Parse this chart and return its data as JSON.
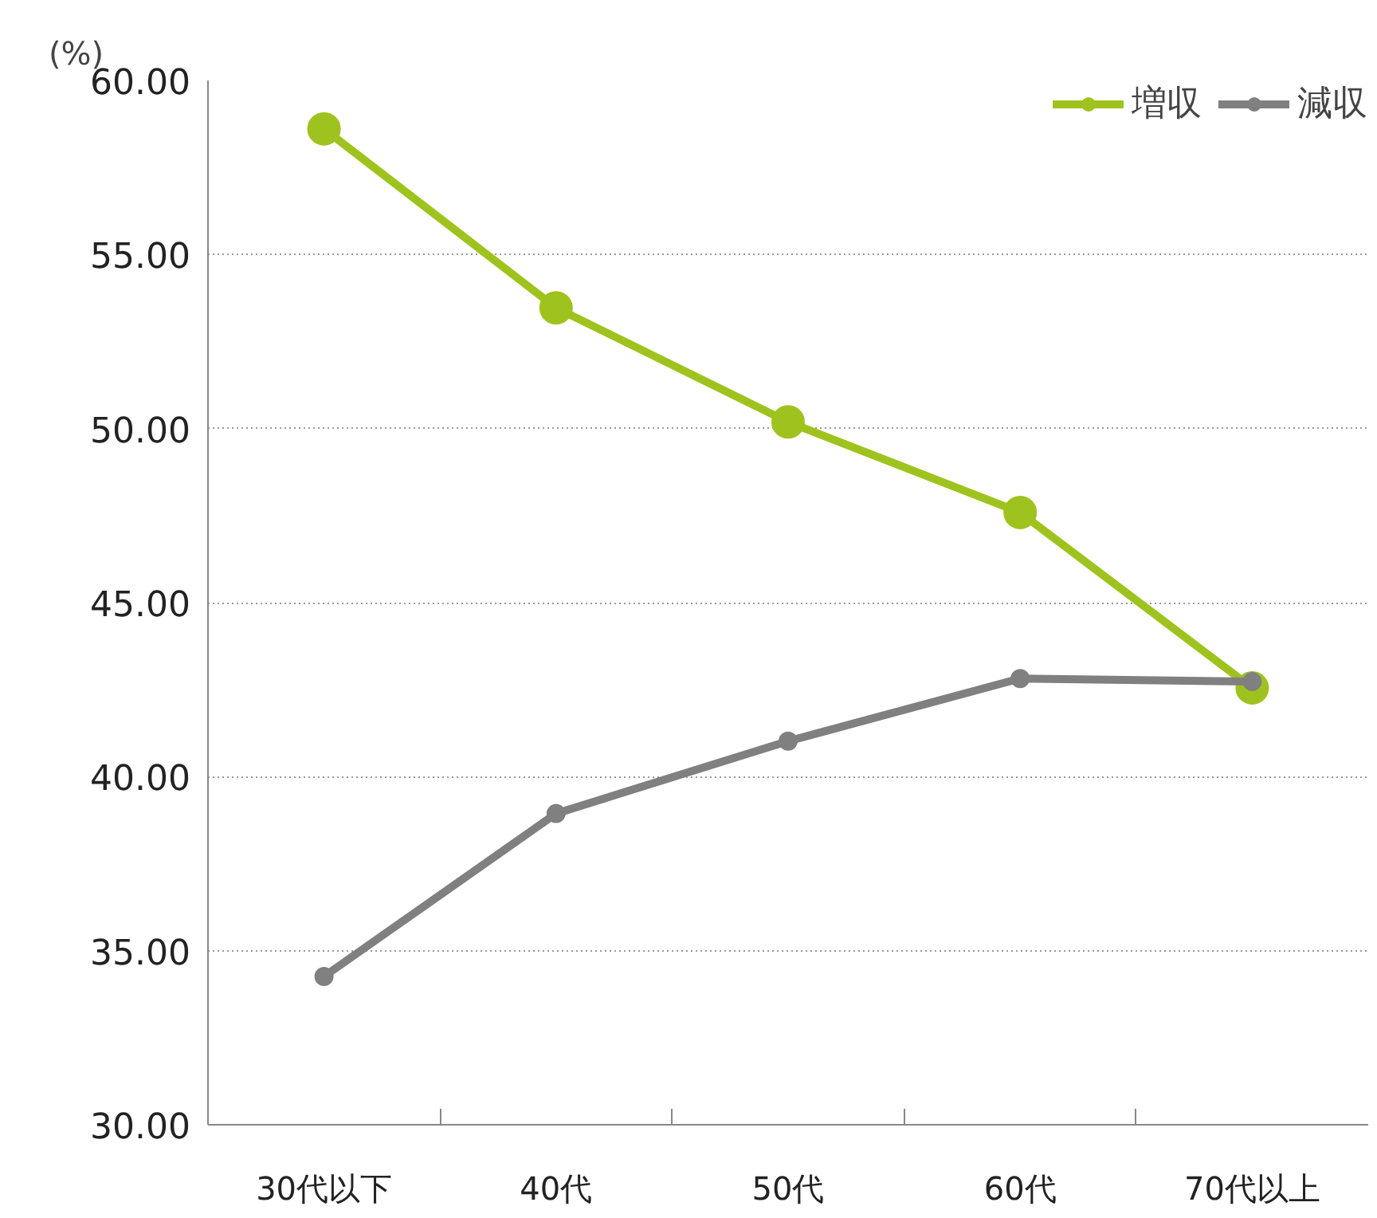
{
  "chart_data": {
    "type": "line",
    "ylabel": "(%)",
    "categories": [
      "30代以下",
      "40代",
      "50代",
      "60代",
      "70代以上"
    ],
    "series": [
      {
        "name": "増収",
        "color": "#9fc31e",
        "values": [
          58.61,
          53.47,
          50.19,
          47.59,
          42.55
        ]
      },
      {
        "name": "減収",
        "color": "#808080",
        "values": [
          34.26,
          38.94,
          41.02,
          42.82,
          42.73
        ]
      }
    ],
    "ylim": [
      30,
      60
    ],
    "yticks": [
      {
        "value": 30,
        "label": "30.00"
      },
      {
        "value": 35,
        "label": "35.00"
      },
      {
        "value": 40,
        "label": "40.00"
      },
      {
        "value": 45,
        "label": "45.00"
      },
      {
        "value": 50,
        "label": "50.00"
      },
      {
        "value": 55,
        "label": "55.00"
      },
      {
        "value": 60,
        "label": "60.00"
      }
    ],
    "grid": "y",
    "legend": "top right",
    "marker": "circle",
    "line_style": "solid"
  }
}
